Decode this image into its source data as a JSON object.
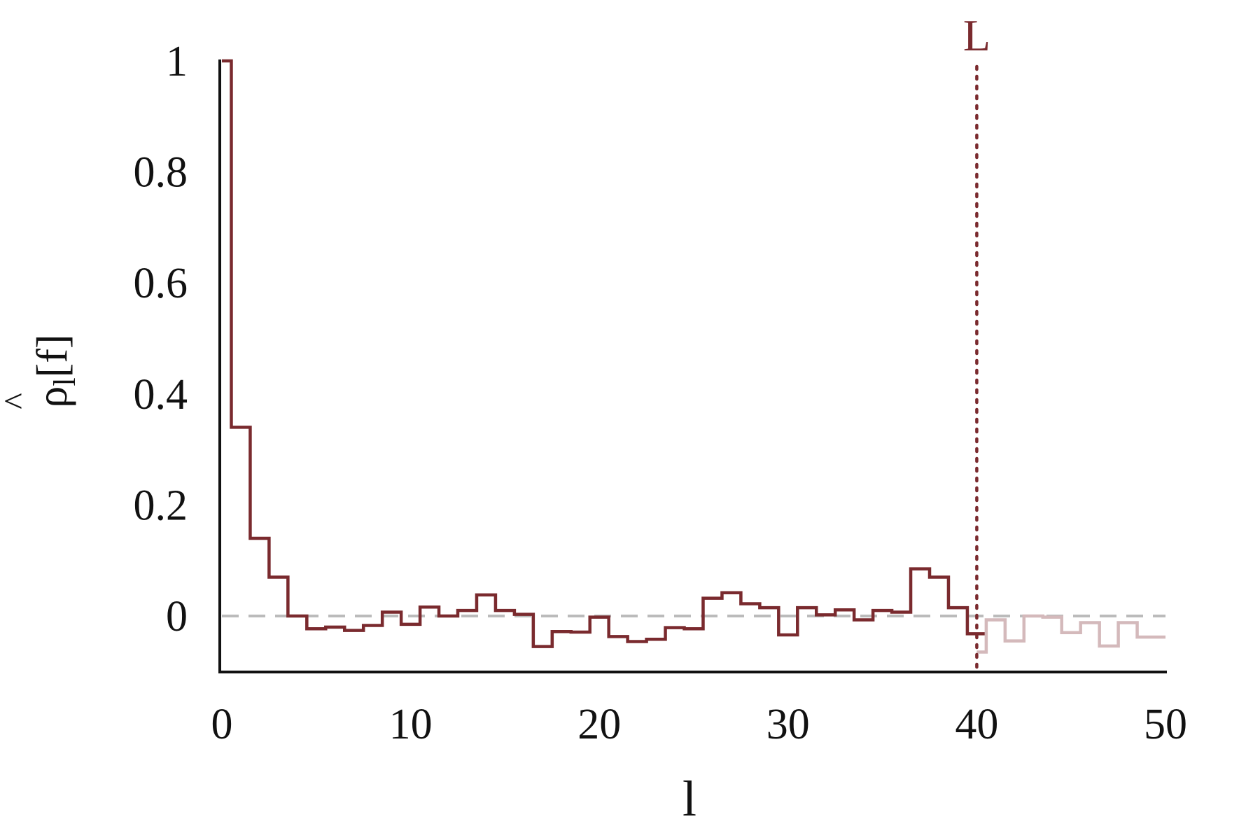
{
  "chart_data": {
    "type": "line",
    "step": true,
    "xlabel": "l",
    "ylabel": {
      "hat": "^",
      "base": "ρ",
      "sub": "l",
      "bracket": "[f]"
    },
    "xlim": [
      0,
      50
    ],
    "ylim": [
      -0.1,
      1.0
    ],
    "x_ticks": [
      "0",
      "10",
      "20",
      "30",
      "40",
      "50"
    ],
    "y_ticks": [
      "0",
      "0.2",
      "0.4",
      "0.6",
      "0.8",
      "1"
    ],
    "grid": false,
    "reference_line": {
      "y": 0,
      "style": "dashed",
      "color": "#bbbbbb"
    },
    "marker": {
      "x": 40,
      "label": "L",
      "style": "dotted",
      "color": "#7a2a2e"
    },
    "series": [
      {
        "color": "#7a2a2e",
        "x": [
          0,
          1,
          2,
          3,
          4,
          5,
          6,
          7,
          8,
          9,
          10,
          11,
          12,
          13,
          14,
          15,
          16,
          17,
          18,
          19,
          20,
          21,
          22,
          23,
          24,
          25,
          26,
          27,
          28,
          29,
          30,
          31,
          32,
          33,
          34,
          35,
          36,
          37,
          38,
          39,
          40
        ],
        "values": [
          1.0,
          0.34,
          0.14,
          0.07,
          0.0,
          -0.023,
          -0.02,
          -0.026,
          -0.017,
          0.007,
          -0.015,
          0.016,
          0.0,
          0.01,
          0.038,
          0.01,
          0.003,
          -0.055,
          -0.028,
          -0.029,
          -0.002,
          -0.037,
          -0.046,
          -0.042,
          -0.021,
          -0.023,
          0.032,
          0.042,
          0.022,
          0.015,
          -0.034,
          0.015,
          0.002,
          0.011,
          -0.007,
          0.01,
          0.007,
          0.085,
          0.07,
          0.015,
          -0.032
        ]
      },
      {
        "color": "#d4b9bb",
        "x": [
          40,
          41,
          42,
          43,
          44,
          45,
          46,
          47,
          48,
          49,
          50
        ],
        "values": [
          -0.065,
          -0.007,
          -0.045,
          0.0,
          -0.002,
          -0.03,
          -0.012,
          -0.054,
          -0.012,
          -0.038,
          -0.038
        ]
      }
    ]
  }
}
